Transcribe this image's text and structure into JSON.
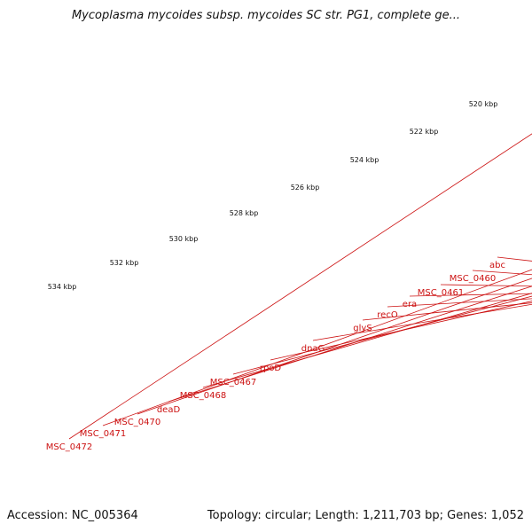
{
  "title": "Mycoplasma mycoides subsp. mycoides SC str. PG1, complete ge...",
  "footer": {
    "accession": "Accession: NC_005364",
    "topology": "Topology: circular; Length: 1,211,703 bp; Genes: 1,052"
  },
  "ruler": {
    "unit_labels": [
      "520 kbp",
      "522 kbp",
      "524 kbp",
      "526 kbp",
      "528 kbp",
      "530 kbp",
      "532 kbp",
      "534 kbp"
    ]
  },
  "genes": [
    {
      "name": "abc"
    },
    {
      "name": "MSC_0460"
    },
    {
      "name": "MSC_0461"
    },
    {
      "name": "era"
    },
    {
      "name": "recO"
    },
    {
      "name": "glyS"
    },
    {
      "name": "dnaG"
    },
    {
      "name": "rpoD"
    },
    {
      "name": "MSC_0467"
    },
    {
      "name": "MSC_0468"
    },
    {
      "name": "deaD"
    },
    {
      "name": "MSC_0470"
    },
    {
      "name": "MSC_0471"
    },
    {
      "name": "MSC_0472"
    }
  ],
  "colors": {
    "backbone": "#777777",
    "forward_gene": "#ee0000",
    "ruler_tick": "#1a7a1a",
    "label": "#cc1111",
    "magenta": "#e8117a",
    "orange": "#ff9900",
    "pink": "#f08080",
    "dark_gray": "#5a5a5a",
    "light_gray": "#b4b4b4",
    "teal": "#00e08a",
    "lime": "#99ee22"
  }
}
